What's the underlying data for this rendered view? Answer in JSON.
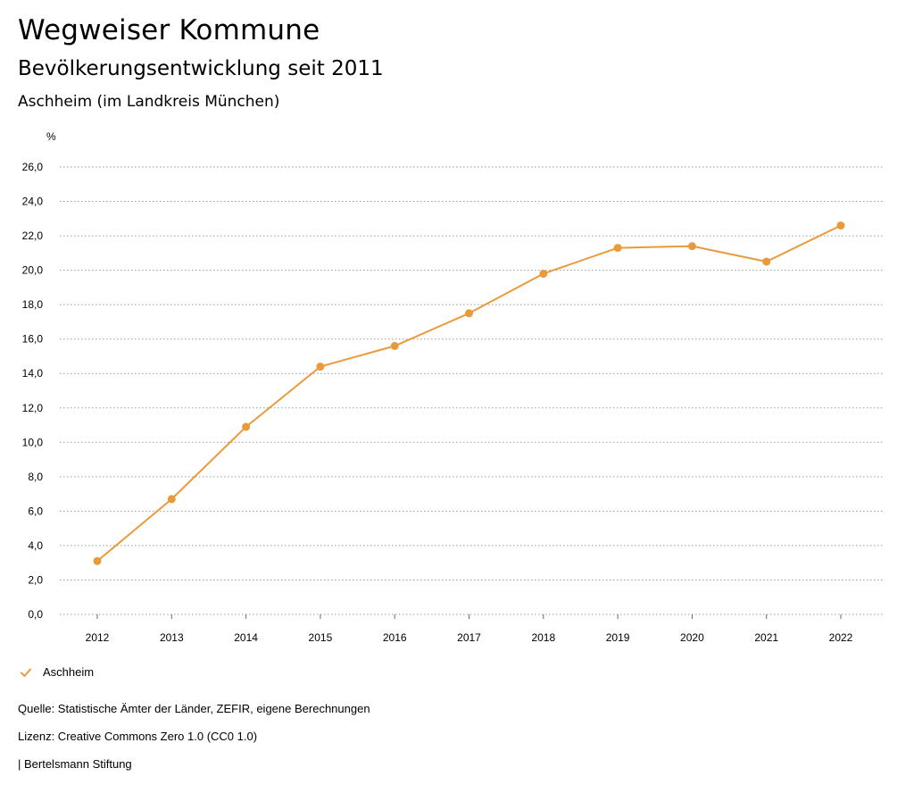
{
  "header": {
    "app_title": "Wegweiser Kommune",
    "chart_title": "Bevölkerungsentwicklung seit 2011",
    "chart_subtitle": "Aschheim (im Landkreis München)"
  },
  "chart_data": {
    "type": "line",
    "title": "Bevölkerungsentwicklung seit 2011",
    "subtitle": "Aschheim (im Landkreis München)",
    "ylabel": "%",
    "xlabel": "",
    "categories": [
      "2012",
      "2013",
      "2014",
      "2015",
      "2016",
      "2017",
      "2018",
      "2019",
      "2020",
      "2021",
      "2022"
    ],
    "series": [
      {
        "name": "Aschheim",
        "color": "#eb9a3a",
        "values": [
          3.1,
          6.7,
          10.9,
          14.4,
          15.6,
          17.5,
          19.8,
          21.3,
          21.4,
          20.5,
          22.6
        ]
      }
    ],
    "ylim": [
      0,
      26
    ],
    "yticks": [
      "0,0",
      "2,0",
      "4,0",
      "6,0",
      "8,0",
      "10,0",
      "12,0",
      "14,0",
      "16,0",
      "18,0",
      "20,0",
      "22,0",
      "24,0",
      "26,0"
    ],
    "grid": true,
    "grid_style": "dotted",
    "legend_position": "bottom-left"
  },
  "footer": {
    "source": "Quelle: Statistische Ämter der Länder, ZEFIR, eigene Berechnungen",
    "license": "Lizenz: Creative Commons Zero 1.0 (CC0 1.0)",
    "brand": "| Bertelsmann Stiftung"
  },
  "colors": {
    "series": "#eb9a3a",
    "grid": "#9a9a9a",
    "text": "#000000"
  }
}
